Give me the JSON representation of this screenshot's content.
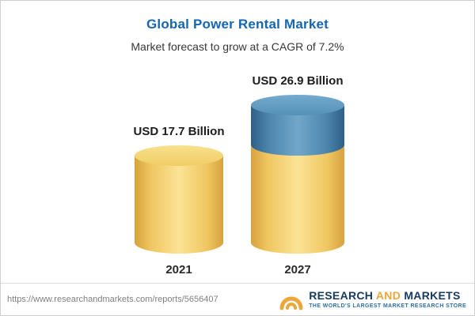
{
  "header": {
    "title": "Global Power Rental Market",
    "subtitle": "Market forecast to grow at a CAGR of 7.2%"
  },
  "chart_data": {
    "type": "bar",
    "subtype": "3d-cylinder",
    "title": "Global Power Rental Market",
    "subtitle": "Market forecast to grow at a CAGR of 7.2%",
    "categories": [
      "2021",
      "2027"
    ],
    "values": [
      17.7,
      26.9
    ],
    "value_labels": [
      "USD 17.7 Billion",
      "USD 26.9 Billion"
    ],
    "unit": "USD Billion",
    "cagr": "7.2%",
    "legend": "none",
    "grid": false,
    "colors": {
      "bar_yellow": "#f0cc66",
      "bar_blue": "#4d87ae"
    },
    "note": "2027 cylinder has a yellow base equal to the 2021 value with a blue growth segment stacked on top"
  },
  "footer": {
    "url": "https://www.researchandmarkets.com/reports/5656407",
    "logo": {
      "word1": "RESEARCH",
      "word2": "AND",
      "word3": "MARKETS",
      "tagline": "THE WORLD'S LARGEST MARKET RESEARCH STORE"
    }
  }
}
